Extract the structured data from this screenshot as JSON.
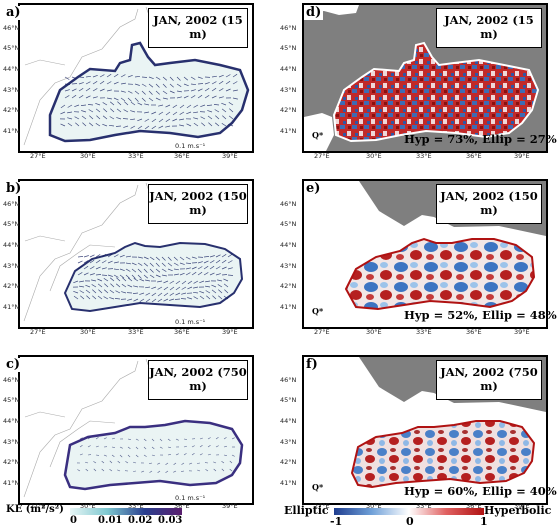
{
  "lat_ticks": [
    "46°N",
    "45°N",
    "44°N",
    "43°N",
    "42°N",
    "41°N"
  ],
  "lon_ticks": [
    "27°E",
    "30°E",
    "33°E",
    "36°E",
    "39°E"
  ],
  "panels": [
    {
      "id": "a",
      "label": "a)",
      "title": "JAN, 2002 (15 m)",
      "scale": "0.1 m.s⁻¹"
    },
    {
      "id": "b",
      "label": "b)",
      "title": "JAN, 2002 (150 m)",
      "scale": "0.1 m.s⁻¹"
    },
    {
      "id": "c",
      "label": "c)",
      "title": "JAN, 2002 (750 m)",
      "scale": "0.1 m.s⁻¹"
    },
    {
      "id": "d",
      "label": "d)",
      "title": "JAN, 2002 (15 m)",
      "stats": "Hyp = 73%, Ellip = 27%",
      "q": "Q*"
    },
    {
      "id": "e",
      "label": "e)",
      "title": "JAN, 2002 (150 m)",
      "stats": "Hyp = 52%, Ellip = 48%",
      "q": "Q*"
    },
    {
      "id": "f",
      "label": "f)",
      "title": "JAN, 2002 (750 m)",
      "stats": "Hyp = 60%, Ellip = 40%",
      "q": "Q*"
    }
  ],
  "ke_colorbar": {
    "label": "KE (m²/s²)",
    "ticks": [
      "0",
      "0.01",
      "0.02",
      "0.03"
    ],
    "colors": [
      "#e8f6f6",
      "#2a3f8f",
      "#5a1f6e"
    ]
  },
  "okubo_colorbar": {
    "left_label": "Elliptic",
    "right_label": "Hyperbolic",
    "ticks": [
      "-1",
      "0",
      "1"
    ],
    "colors": [
      "#1f3d8f",
      "#ffffff",
      "#b01212"
    ]
  },
  "colors": {
    "land_gray": "#7f7f7f",
    "coast": "#888888"
  }
}
